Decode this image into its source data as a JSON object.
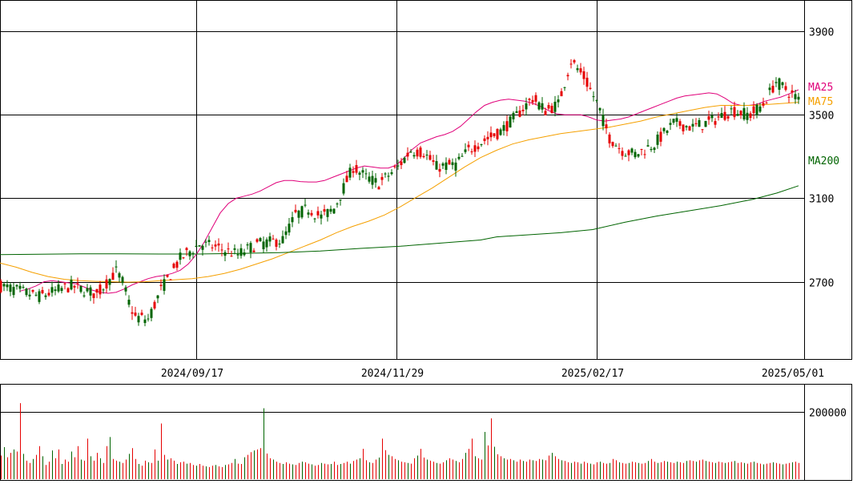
{
  "colors": {
    "up": "#e60000",
    "down": "#006400",
    "ma25": "#e0007a",
    "ma75": "#f5a000",
    "ma200": "#006400",
    "grid": "#000000",
    "background": "#ffffff"
  },
  "chart_data": [
    {
      "type": "candlestick",
      "panel": "price",
      "title": "",
      "y_ticks": [
        2700,
        3100,
        3500,
        3900
      ],
      "ylim": [
        2330,
        4050
      ],
      "x_tick_labels": [
        "2024/09/17",
        "2024/11/29",
        "2025/02/17",
        "2025/05/01"
      ],
      "legend": [
        {
          "key": "ma25",
          "label": "MA25"
        },
        {
          "key": "ma75",
          "label": "MA75"
        },
        {
          "key": "ma200",
          "label": "MA200"
        }
      ],
      "series": [
        {
          "name": "MA25",
          "key": "ma25",
          "points": [
            [
              25,
              2655
            ],
            [
              35,
              2665
            ],
            [
              45,
              2680
            ],
            [
              55,
              2700
            ],
            [
              65,
              2705
            ],
            [
              75,
              2700
            ],
            [
              85,
              2695
            ],
            [
              95,
              2690
            ],
            [
              105,
              2675
            ],
            [
              115,
              2660
            ],
            [
              125,
              2650
            ],
            [
              135,
              2645
            ],
            [
              145,
              2650
            ],
            [
              155,
              2665
            ],
            [
              165,
              2685
            ],
            [
              175,
              2700
            ],
            [
              185,
              2715
            ],
            [
              195,
              2725
            ],
            [
              205,
              2730
            ],
            [
              215,
              2740
            ],
            [
              225,
              2755
            ],
            [
              235,
              2785
            ],
            [
              245,
              2830
            ],
            [
              255,
              2890
            ],
            [
              265,
              2960
            ],
            [
              275,
              3030
            ],
            [
              285,
              3075
            ],
            [
              295,
              3100
            ],
            [
              305,
              3110
            ],
            [
              315,
              3120
            ],
            [
              325,
              3135
            ],
            [
              335,
              3155
            ],
            [
              345,
              3175
            ],
            [
              355,
              3185
            ],
            [
              365,
              3185
            ],
            [
              375,
              3180
            ],
            [
              385,
              3178
            ],
            [
              395,
              3178
            ],
            [
              405,
              3185
            ],
            [
              415,
              3200
            ],
            [
              425,
              3215
            ],
            [
              435,
              3230
            ],
            [
              445,
              3245
            ],
            [
              455,
              3255
            ],
            [
              465,
              3250
            ],
            [
              475,
              3245
            ],
            [
              485,
              3245
            ],
            [
              495,
              3260
            ],
            [
              505,
              3295
            ],
            [
              515,
              3335
            ],
            [
              525,
              3365
            ],
            [
              535,
              3380
            ],
            [
              545,
              3395
            ],
            [
              555,
              3405
            ],
            [
              565,
              3420
            ],
            [
              575,
              3445
            ],
            [
              585,
              3480
            ],
            [
              595,
              3515
            ],
            [
              605,
              3545
            ],
            [
              615,
              3560
            ],
            [
              625,
              3570
            ],
            [
              635,
              3575
            ],
            [
              645,
              3570
            ],
            [
              655,
              3565
            ],
            [
              665,
              3555
            ],
            [
              675,
              3540
            ],
            [
              685,
              3520
            ],
            [
              695,
              3505
            ],
            [
              705,
              3500
            ],
            [
              715,
              3500
            ],
            [
              725,
              3500
            ],
            [
              735,
              3490
            ],
            [
              745,
              3475
            ],
            [
              755,
              3470
            ],
            [
              765,
              3475
            ],
            [
              775,
              3480
            ],
            [
              785,
              3490
            ],
            [
              795,
              3505
            ],
            [
              805,
              3520
            ],
            [
              815,
              3535
            ],
            [
              825,
              3550
            ],
            [
              835,
              3565
            ],
            [
              845,
              3580
            ],
            [
              855,
              3590
            ],
            [
              865,
              3595
            ],
            [
              875,
              3600
            ],
            [
              885,
              3605
            ],
            [
              895,
              3600
            ],
            [
              905,
              3580
            ],
            [
              915,
              3555
            ],
            [
              925,
              3545
            ],
            [
              935,
              3545
            ],
            [
              945,
              3550
            ],
            [
              955,
              3565
            ],
            [
              965,
              3575
            ],
            [
              975,
              3585
            ],
            [
              985,
              3600
            ],
            [
              997,
              3620
            ]
          ]
        },
        {
          "name": "MA75",
          "key": "ma75",
          "points": [
            [
              0,
              2790
            ],
            [
              20,
              2770
            ],
            [
              40,
              2745
            ],
            [
              60,
              2725
            ],
            [
              80,
              2712
            ],
            [
              100,
              2705
            ],
            [
              120,
              2702
            ],
            [
              140,
              2700
            ],
            [
              160,
              2698
            ],
            [
              180,
              2700
            ],
            [
              200,
              2705
            ],
            [
              220,
              2710
            ],
            [
              240,
              2715
            ],
            [
              260,
              2725
            ],
            [
              280,
              2740
            ],
            [
              300,
              2760
            ],
            [
              320,
              2785
            ],
            [
              340,
              2810
            ],
            [
              360,
              2840
            ],
            [
              380,
              2870
            ],
            [
              400,
              2900
            ],
            [
              420,
              2935
            ],
            [
              440,
              2965
            ],
            [
              460,
              2990
            ],
            [
              480,
              3020
            ],
            [
              500,
              3060
            ],
            [
              520,
              3105
            ],
            [
              540,
              3150
            ],
            [
              560,
              3200
            ],
            [
              580,
              3250
            ],
            [
              600,
              3295
            ],
            [
              620,
              3330
            ],
            [
              640,
              3360
            ],
            [
              660,
              3380
            ],
            [
              680,
              3395
            ],
            [
              700,
              3410
            ],
            [
              720,
              3420
            ],
            [
              740,
              3430
            ],
            [
              760,
              3440
            ],
            [
              780,
              3455
            ],
            [
              800,
              3470
            ],
            [
              820,
              3490
            ],
            [
              840,
              3505
            ],
            [
              860,
              3520
            ],
            [
              880,
              3535
            ],
            [
              900,
              3545
            ],
            [
              920,
              3545
            ],
            [
              940,
              3545
            ],
            [
              960,
              3550
            ],
            [
              980,
              3555
            ],
            [
              997,
              3560
            ]
          ]
        },
        {
          "name": "MA200",
          "key": "ma200",
          "points": [
            [
              0,
              2830
            ],
            [
              50,
              2832
            ],
            [
              100,
              2834
            ],
            [
              150,
              2834
            ],
            [
              200,
              2833
            ],
            [
              250,
              2833
            ],
            [
              300,
              2836
            ],
            [
              350,
              2840
            ],
            [
              400,
              2847
            ],
            [
              450,
              2860
            ],
            [
              500,
              2870
            ],
            [
              550,
              2885
            ],
            [
              600,
              2900
            ],
            [
              620,
              2915
            ],
            [
              660,
              2925
            ],
            [
              700,
              2935
            ],
            [
              740,
              2950
            ],
            [
              780,
              2985
            ],
            [
              820,
              3015
            ],
            [
              860,
              3040
            ],
            [
              900,
              3065
            ],
            [
              940,
              3095
            ],
            [
              970,
              3125
            ],
            [
              997,
              3160
            ]
          ]
        }
      ]
    },
    {
      "type": "bar",
      "panel": "volume",
      "title": "",
      "y_ticks": [
        200000
      ],
      "ylim": [
        0,
        280000
      ],
      "series": [
        {
          "name": "",
          "values": [
            70000,
            95000,
            65000,
            78000,
            88000,
            82000,
            225000,
            75000,
            55000,
            48000,
            60000,
            72000,
            98000,
            68000,
            42000,
            52000,
            85000,
            62000,
            88000,
            45000,
            58000,
            52000,
            82000,
            65000,
            98000,
            58000,
            55000,
            120000,
            68000,
            55000,
            78000,
            62000,
            48000,
            98000,
            125000,
            60000,
            55000,
            52000,
            48000,
            58000,
            75000,
            92000,
            60000,
            45000,
            40000,
            55000,
            50000,
            48000,
            88000,
            55000,
            165000,
            72000,
            58000,
            62000,
            55000,
            45000,
            50000,
            52000,
            46000,
            48000,
            42000,
            40000,
            45000,
            40000,
            38000,
            36000,
            40000,
            42000,
            38000,
            36000,
            42000,
            44000,
            48000,
            60000,
            46000,
            45000,
            65000,
            72000,
            80000,
            85000,
            88000,
            92000,
            210000,
            76000,
            62000,
            58000,
            52000,
            48000,
            45000,
            50000,
            46000,
            44000,
            42000,
            48000,
            52000,
            50000,
            46000,
            44000,
            40000,
            42000,
            48000,
            46000,
            44000,
            45000,
            52000,
            42000,
            45000,
            48000,
            52000,
            46000,
            54000,
            58000,
            62000,
            90000,
            56000,
            50000,
            48000,
            58000,
            64000,
            120000,
            86000,
            72000,
            68000,
            60000,
            56000,
            52000,
            50000,
            48000,
            46000,
            62000,
            70000,
            90000,
            64000,
            58000,
            55000,
            52000,
            48000,
            46000,
            50000,
            56000,
            62000,
            58000,
            54000,
            50000,
            60000,
            78000,
            90000,
            120000,
            68000,
            62000,
            58000,
            140000,
            100000,
            180000,
            96000,
            74000,
            68000,
            62000,
            58000,
            60000,
            56000,
            52000,
            58000,
            54000,
            52000,
            58000,
            56000,
            54000,
            60000,
            58000,
            56000,
            70000,
            78000,
            68000,
            60000,
            56000,
            54000,
            50000,
            48000,
            52000,
            50000,
            46000,
            52000,
            48000,
            46000,
            44000,
            50000,
            52000,
            48000,
            46000,
            48000,
            60000,
            56000,
            50000,
            48000,
            46000,
            48000,
            52000,
            50000,
            48000,
            46000,
            48000,
            54000,
            60000,
            52000,
            48000,
            50000,
            54000,
            52000,
            50000,
            48000,
            52000,
            50000,
            48000,
            54000,
            56000,
            54000,
            52000,
            56000,
            58000,
            54000,
            52000,
            50000,
            48000,
            52000,
            50000,
            48000,
            50000,
            52000,
            54000,
            48000,
            50000,
            48000,
            46000,
            50000,
            52000,
            48000,
            46000,
            44000,
            46000,
            48000,
            50000,
            48000,
            46000,
            44000,
            46000,
            48000,
            50000,
            52000,
            48000,
            46000,
            44000,
            42000,
            46000,
            48000
          ]
        }
      ]
    }
  ]
}
